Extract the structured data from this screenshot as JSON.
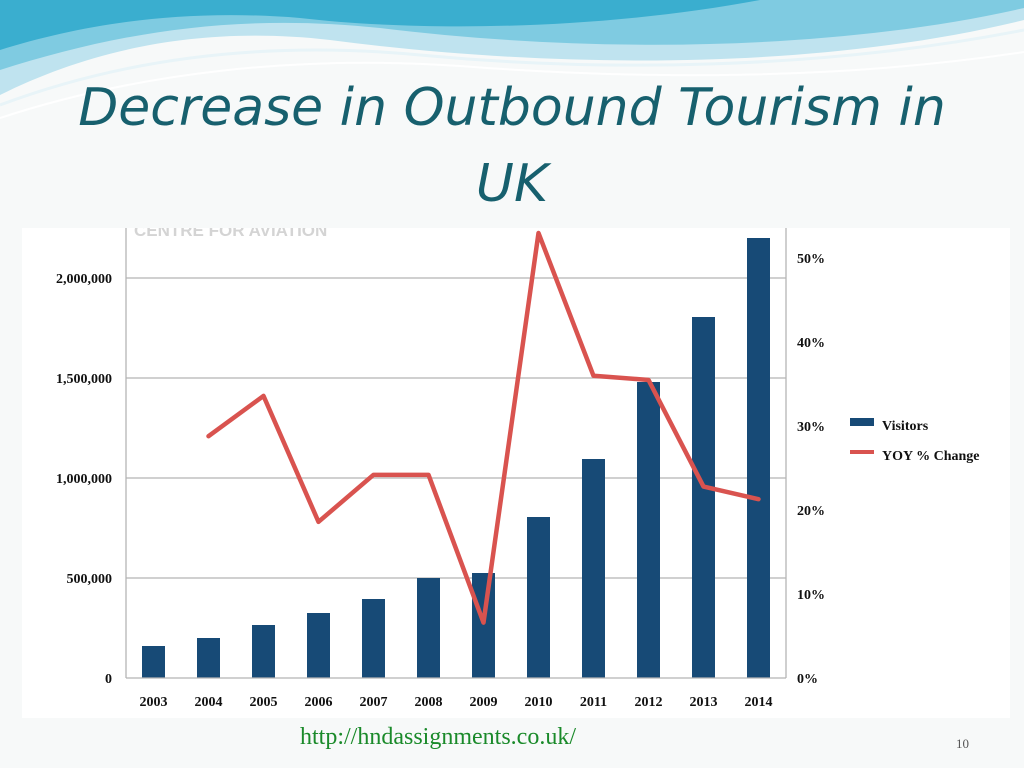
{
  "slide": {
    "title": "Decrease in Outbound Tourism in UK",
    "watermark": "CENTRE FOR AVIATION",
    "source_url": "http://hndassignments.co.uk/",
    "page_number": "10",
    "colors": {
      "title": "#17606e",
      "bar": "#174a76",
      "line": "#d9534f",
      "link": "#1a8a2a"
    }
  },
  "chart_data": {
    "type": "bar",
    "title": "",
    "xlabel": "",
    "ylabel": "",
    "categories": [
      "2003",
      "2004",
      "2005",
      "2006",
      "2007",
      "2008",
      "2009",
      "2010",
      "2011",
      "2012",
      "2013",
      "2014"
    ],
    "series": [
      {
        "name": "Visitors",
        "type": "bar",
        "axis": "left",
        "values": [
          160000,
          200000,
          265000,
          325000,
          395000,
          500000,
          525000,
          805000,
          1095000,
          1480000,
          1805000,
          2200000
        ]
      },
      {
        "name": "YOY % Change",
        "type": "line",
        "axis": "right",
        "values": [
          null,
          28.8,
          33.6,
          18.6,
          24.2,
          24.2,
          6.6,
          53.0,
          36.0,
          35.5,
          22.8,
          21.3
        ]
      }
    ],
    "ylim": [
      0,
      2250000
    ],
    "y_ticks": [
      "0",
      "500,000",
      "1,000,000",
      "1,500,000",
      "2,000,000"
    ],
    "y_tick_values": [
      0,
      500000,
      1000000,
      1500000,
      2000000
    ],
    "y2lim": [
      0,
      53.6
    ],
    "y2_ticks": [
      "0%",
      "10%",
      "20%",
      "30%",
      "40%",
      "50%"
    ],
    "y2_tick_values": [
      0,
      10,
      20,
      30,
      40,
      50
    ],
    "grid": true,
    "legend": "right"
  }
}
